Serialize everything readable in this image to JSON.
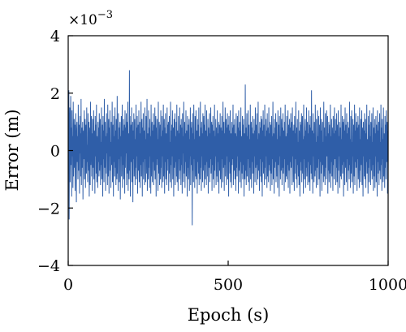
{
  "colors": {
    "series": "#2f5ea8",
    "axes": "#000000",
    "background": "#ffffff"
  },
  "chart_data": {
    "type": "line",
    "title": "",
    "xlabel": "Epoch (s)",
    "ylabel": "Error (m)",
    "y_multiplier_label": "×10",
    "y_multiplier_exponent": "−3",
    "xlim": [
      0,
      1000
    ],
    "ylim": [
      -4,
      4
    ],
    "xticks": [
      0,
      500,
      1000
    ],
    "xtick_labels": [
      "0",
      "500",
      "1000"
    ],
    "yticks": [
      -4,
      -2,
      0,
      2,
      4
    ],
    "ytick_labels": [
      "−4",
      "−2",
      "0",
      "2",
      "4"
    ],
    "grid": false,
    "legend": "none",
    "y_scale_note": "values in units of 1e-3 m",
    "series": [
      {
        "x_start": 1,
        "x_step": 1,
        "values": [
          1.2,
          -0.8,
          2.1,
          -2.4,
          0.6,
          1.5,
          -1.1,
          0.3,
          1.9,
          -0.5,
          0.8,
          -1.6,
          1.4,
          -0.2,
          0.5,
          -1.3,
          1.7,
          -0.9,
          0.2,
          1.1,
          -0.6,
          0.9,
          -1.4,
          0.4,
          1.3,
          -0.3,
          -1.8,
          0.7,
          1.0,
          -0.4,
          0.5,
          -1.0,
          1.6,
          -0.7,
          0.2,
          0.9,
          -1.5,
          1.2,
          -0.1,
          0.6,
          -0.9,
          1.8,
          -1.2,
          0.3,
          0.8,
          -0.6,
          1.0,
          -1.7,
          0.4,
          0.7,
          -0.3,
          1.4,
          -1.0,
          0.1,
          1.1,
          -1.3,
          0.6,
          0.9,
          -0.8,
          1.5,
          -0.4,
          0.2,
          -1.1,
          1.3,
          0.5,
          -0.7,
          1.0,
          -1.6,
          0.3,
          0.8,
          -1.2,
          1.7,
          -0.5,
          0.4,
          1.2,
          -0.9,
          0.6,
          -1.4,
          1.1,
          0.2,
          -0.6,
          1.4,
          -1.0,
          0.7,
          0.3,
          -1.5,
          1.2,
          -0.2,
          0.9,
          -0.8,
          1.6,
          -1.1,
          0.5,
          0.1,
          -1.3,
          1.0,
          -0.4,
          0.8,
          -0.9,
          1.3,
          -0.7,
          0.6,
          1.1,
          -1.2,
          0.3,
          -0.5,
          1.5,
          -1.0,
          0.4,
          0.9,
          -1.6,
          1.2,
          -0.3,
          0.7,
          -1.1,
          1.8,
          -0.6,
          0.2,
          1.0,
          -1.4,
          0.5,
          -0.8,
          1.3,
          -0.1,
          0.6,
          -1.2,
          1.6,
          -0.9,
          0.4,
          1.1,
          -1.5,
          0.8,
          -0.2,
          1.4,
          -0.7,
          0.3,
          -1.3,
          1.0,
          0.6,
          -0.5,
          1.7,
          -1.1,
          0.2,
          0.9,
          -1.6,
          1.2,
          -0.4,
          0.5,
          -0.9,
          1.5,
          -0.6,
          0.7,
          -1.2,
          1.1,
          0.1,
          -1.0,
          1.9,
          -0.8,
          0.4,
          -1.4,
          1.3,
          -0.3,
          0.8,
          -1.1,
          0.6,
          1.0,
          -1.7,
          0.5,
          -0.2,
          1.2,
          -0.9,
          0.3,
          1.6,
          -1.3,
          0.7,
          -0.5,
          1.1,
          -1.0,
          0.2,
          0.9,
          -1.5,
          1.4,
          -0.6,
          0.8,
          -0.1,
          1.3,
          -1.2,
          0.4,
          1.0,
          -0.8,
          1.7,
          -1.4,
          0.6,
          0.3,
          -1.0,
          2.8,
          -0.7,
          1.2,
          -1.6,
          0.5,
          0.9,
          -0.4,
          1.5,
          -1.1,
          0.2,
          1.0,
          -1.8,
          0.7,
          -0.3,
          1.3,
          -0.9,
          0.6,
          1.1,
          -1.2,
          0.4,
          -0.6,
          1.6,
          -1.0,
          0.8,
          -0.2,
          1.2,
          -1.5,
          0.5,
          0.9,
          -0.7,
          1.4,
          -1.1,
          0.3,
          1.0,
          -1.3,
          0.6,
          -0.5,
          1.7,
          -0.9,
          0.2,
          1.1,
          -1.6,
          0.8,
          -0.4,
          1.3,
          -1.0,
          0.5,
          0.7,
          -1.2,
          1.5,
          -0.3,
          0.4,
          -1.1,
          1.2,
          0.9,
          -0.8,
          1.8,
          -1.4,
          0.6,
          0.1,
          -1.0,
          1.4,
          -0.6,
          0.8,
          -1.3,
          1.1,
          -0.2,
          0.5,
          -1.5,
          1.6,
          -0.9,
          0.3,
          1.0,
          -1.1,
          0.7,
          -0.4,
          1.3,
          -1.2,
          0.6,
          0.9,
          -0.7,
          1.5,
          -1.0,
          0.2,
          1.2,
          -1.6,
          0.8,
          -0.5,
          1.1,
          -0.3,
          0.4,
          -1.4,
          1.7,
          -0.8,
          0.6,
          1.0,
          -1.2,
          0.3,
          0.9,
          -1.0,
          1.4,
          -0.6,
          0.5,
          -1.3,
          1.2,
          -0.2,
          0.7,
          -1.1,
          1.6,
          -0.9,
          0.4,
          1.1,
          -1.5,
          0.8,
          -0.4,
          1.3,
          -1.0,
          0.6,
          0.2,
          -1.2,
          1.5,
          -0.7,
          0.9,
          -0.3,
          1.0,
          -1.4,
          0.5,
          1.2,
          -0.8,
          0.3,
          -1.1,
          1.7,
          -0.5,
          0.7,
          -1.3,
          0.9,
          -0.2,
          1.4,
          -1.0,
          0.4,
          0.8,
          -1.6,
          1.1,
          -0.6,
          0.3,
          1.3,
          -1.2,
          0.5,
          -0.4,
          1.0,
          -0.9,
          1.6,
          -1.1,
          0.2,
          0.7,
          -1.4,
          1.2,
          -0.3,
          0.6,
          -1.0,
          1.5,
          -0.7,
          0.4,
          0.9,
          -1.2,
          1.1,
          -0.5,
          0.8,
          -1.5,
          1.3,
          -0.1,
          0.5,
          -1.1,
          1.7,
          -0.8,
          0.3,
          1.0,
          -1.3,
          0.6,
          -0.4,
          1.4,
          -0.9,
          0.7,
          0.2,
          -1.6,
          1.2,
          -0.6,
          0.9,
          -1.0,
          0.5,
          1.1,
          -1.4,
          0.4,
          -0.2,
          1.5,
          -1.2,
          0.8,
          -0.5,
          1.0,
          0.3,
          -2.6,
          1.3,
          -0.7,
          0.6,
          -1.1,
          1.6,
          -0.3,
          0.4,
          -1.3,
          1.2,
          0.8,
          -0.9,
          1.4,
          -1.0,
          0.2,
          0.7,
          -1.5,
          1.1,
          -0.4,
          0.9,
          -0.8,
          1.5,
          -1.2,
          0.5,
          0.3,
          -1.0,
          1.7,
          -0.6,
          0.8,
          -1.4,
          1.0,
          -0.2,
          0.6,
          -1.1,
          1.3,
          -0.7,
          0.4,
          1.2,
          -1.3,
          0.9,
          -0.5,
          1.6,
          -1.0,
          0.3,
          0.7,
          -1.2,
          1.4,
          -0.4,
          0.5,
          -0.9,
          1.1,
          -1.5,
          0.8,
          0.2,
          -0.6,
          1.3,
          -1.1,
          0.6,
          -0.3,
          1.5,
          -0.8,
          0.4,
          1.0,
          -1.4,
          0.9,
          -0.5,
          1.2,
          -1.0,
          0.3,
          0.7,
          -1.3,
          1.6,
          -0.7,
          0.5,
          -0.2,
          1.1,
          -1.2,
          0.8,
          0.4,
          -0.9,
          1.4,
          -1.1,
          0.6,
          -0.4,
          1.0,
          -1.5,
          0.9,
          0.2,
          -0.7,
          1.3,
          -1.0,
          0.5,
          0.8,
          -1.3,
          1.2,
          -0.3,
          0.7,
          -1.1,
          1.7,
          -0.6,
          0.4,
          1.0,
          -1.4,
          0.6,
          -0.5,
          1.5,
          -0.9,
          0.3,
          1.1,
          -1.2,
          0.8,
          -0.2,
          1.3,
          -1.0,
          0.5,
          0.9,
          -1.6,
          1.2,
          -0.4,
          0.7,
          -0.8,
          1.4,
          -1.1,
          0.2,
          0.6,
          -1.3,
          1.0,
          -0.5,
          0.8,
          -0.3,
          1.6,
          -1.2,
          0.4,
          0.9,
          -0.7,
          1.1,
          -1.0,
          0.6,
          0.3,
          -1.4,
          1.3,
          -0.6,
          0.5,
          -0.9,
          1.2,
          -0.2,
          0.8,
          -1.5,
          1.4,
          -0.7,
          0.3,
          1.0,
          -1.1,
          0.7,
          -0.4,
          1.5,
          -1.3,
          0.5,
          0.2,
          -0.8,
          1.2,
          -1.0,
          0.9,
          -0.5,
          1.1,
          -1.6,
          0.6,
          0.4,
          -1.0,
          2.3,
          -0.7,
          0.8,
          -1.2,
          0.3,
          1.3,
          -0.9,
          0.5,
          -0.3,
          1.4,
          -1.1,
          0.7,
          0.9,
          -1.4,
          0.4,
          -0.6,
          1.6,
          -1.0,
          0.2,
          1.0,
          -1.3,
          0.8,
          -0.4,
          1.2,
          -0.8,
          0.6,
          0.3,
          -1.5,
          1.1,
          -0.2,
          0.7,
          -1.1,
          1.5,
          -0.6,
          0.5,
          0.9,
          -1.2,
          1.3,
          -0.5,
          0.4,
          -1.0,
          1.7,
          -0.7,
          0.6,
          0.2,
          -1.4,
          1.0,
          -0.3,
          0.8,
          -0.9,
          1.2,
          -1.1,
          0.5,
          1.1,
          -1.6,
          0.7,
          -0.4,
          1.4,
          -0.8,
          0.3,
          0.9,
          -1.2,
          1.6,
          -0.6,
          0.5,
          -1.0,
          1.1,
          -0.2,
          0.7,
          -1.3,
          1.3,
          -0.9,
          0.4,
          0.8,
          -1.1,
          1.5,
          -0.5,
          0.6,
          -0.7,
          1.0,
          -1.4,
          0.9,
          0.3,
          -0.8,
          1.2,
          -1.2,
          0.5,
          -0.3,
          1.7,
          -1.0,
          0.6,
          0.2,
          -1.5,
          1.1,
          -0.6,
          0.8,
          -0.4,
          1.3,
          -1.1,
          0.7,
          1.0,
          -0.9,
          0.4,
          -1.3,
          1.4,
          -0.5,
          0.6,
          0.9,
          -1.6,
          1.2,
          -0.2,
          0.5,
          -1.0,
          1.5,
          -0.7,
          0.3,
          1.1,
          -1.2,
          0.8,
          -0.6,
          1.3,
          -0.8,
          0.4,
          0.7,
          -1.4,
          1.0,
          -0.3,
          1.6,
          -1.1,
          0.5,
          0.2,
          -0.9,
          1.2,
          -1.0,
          0.6,
          -0.5,
          1.4,
          -1.3,
          0.9,
          0.3,
          -0.7,
          1.1,
          -1.5,
          0.8,
          -0.4,
          1.3,
          -0.6,
          0.5,
          1.0,
          -1.2,
          1.5,
          -0.2,
          0.7,
          -1.1,
          0.4,
          0.9,
          -1.4,
          1.2,
          -0.8,
          0.6,
          -0.3,
          1.7,
          -1.0,
          0.5,
          0.8,
          -1.3,
          1.1,
          -0.5,
          0.3,
          -0.9,
          1.4,
          -1.2,
          0.7,
          0.2,
          -1.6,
          1.0,
          -0.4,
          0.9,
          -0.7,
          1.3,
          -1.1,
          0.6,
          1.2,
          -0.8,
          0.4,
          -1.5,
          1.6,
          -0.3,
          0.5,
          -1.0,
          0.8,
          1.1,
          -1.3,
          0.7,
          -0.6,
          1.5,
          -0.9,
          0.2,
          1.0,
          -1.2,
          0.6,
          -0.4,
          1.4,
          -1.1,
          0.9,
          0.3,
          -1.4,
          1.2,
          -0.5,
          0.8,
          -0.8,
          2.1,
          -1.0,
          0.4,
          0.7,
          -1.5,
          1.3,
          -0.2,
          0.6,
          -1.1,
          1.0,
          0.5,
          -0.9,
          1.6,
          -0.7,
          0.3,
          -1.3,
          1.1,
          0.8,
          -0.6,
          1.4,
          -1.2,
          0.5,
          -0.3,
          1.2,
          -1.0,
          0.9,
          0.2,
          -1.6,
          1.5,
          -0.4,
          0.7,
          -0.8,
          1.1,
          -1.4,
          0.6,
          1.0,
          -0.5,
          0.3,
          -1.1,
          1.7,
          -0.9,
          0.4,
          0.8,
          -1.2,
          1.3,
          -0.6,
          0.5,
          -1.0,
          1.4,
          -0.2,
          0.7,
          1.2,
          -1.5,
          0.6,
          -0.7,
          1.0,
          -1.1,
          0.3,
          0.9,
          -0.8,
          1.6,
          -1.3,
          0.5,
          -0.4,
          1.1,
          -0.9,
          0.8,
          0.2,
          -1.4,
          1.2,
          -0.5,
          0.6,
          -1.0,
          1.5,
          -0.3,
          0.4,
          1.1,
          -1.2,
          0.7,
          -0.6,
          1.3,
          -1.1,
          0.9,
          0.3,
          -1.5,
          1.4,
          -0.7,
          0.5,
          -0.2,
          1.0,
          -1.3,
          0.8,
          0.6,
          -0.9,
          1.6,
          -1.0,
          0.4,
          -0.5,
          1.2,
          -0.8,
          0.3,
          1.0,
          -1.6,
          1.1,
          -0.4,
          0.7,
          -1.2,
          1.5,
          -0.6,
          0.5,
          0.9,
          -1.1,
          1.3,
          -0.3,
          0.6,
          -1.4,
          1.0,
          -0.7,
          0.8,
          0.2,
          -1.0,
          1.7,
          -0.5,
          0.4,
          -1.3,
          1.2,
          0.6,
          -0.8,
          1.4,
          -1.1,
          0.3,
          -0.2,
          1.1,
          -1.5,
          0.9,
          0.5,
          -0.9,
          1.6,
          -1.2,
          0.7,
          -0.4,
          1.3,
          -0.6,
          0.2,
          1.0,
          -1.4,
          0.8,
          -0.3,
          1.2,
          -1.0,
          0.5,
          0.9,
          -1.3,
          1.5,
          -0.7,
          0.4,
          -1.1,
          1.1,
          0.6,
          -0.5,
          1.4,
          -1.2,
          0.3,
          0.8,
          -1.6,
          1.0,
          -0.2,
          0.7,
          -0.9,
          1.3,
          -1.0,
          0.5,
          1.1,
          -1.3,
          0.6,
          -0.4,
          1.6,
          -0.8,
          0.4,
          0.2,
          -1.5,
          1.2,
          -0.6,
          0.9,
          -1.1,
          1.4,
          -0.3,
          0.5,
          -1.2,
          1.0,
          0.7,
          -0.7,
          1.3,
          -1.0,
          0.3,
          -0.5,
          1.5,
          -1.4,
          0.8,
          0.4,
          -0.9,
          1.1,
          -1.3,
          0.6,
          -0.2,
          1.2,
          -1.1,
          0.9,
          0.5,
          -1.6,
          1.4,
          -0.4,
          0.7,
          -0.8,
          1.0,
          -1.2,
          0.6,
          1.3,
          -0.7,
          0.3,
          -1.0,
          1.6,
          -0.5,
          0.8,
          -1.4,
          1.1,
          -0.3,
          0.4,
          -1.1,
          1.5,
          -0.9,
          0.6,
          0.2,
          -1.3,
          1.2,
          -0.6,
          0.9,
          -1.0,
          1.4,
          -0.4,
          0.5,
          1.0,
          -1.5,
          0.7,
          -0.8
        ]
      }
    ]
  }
}
